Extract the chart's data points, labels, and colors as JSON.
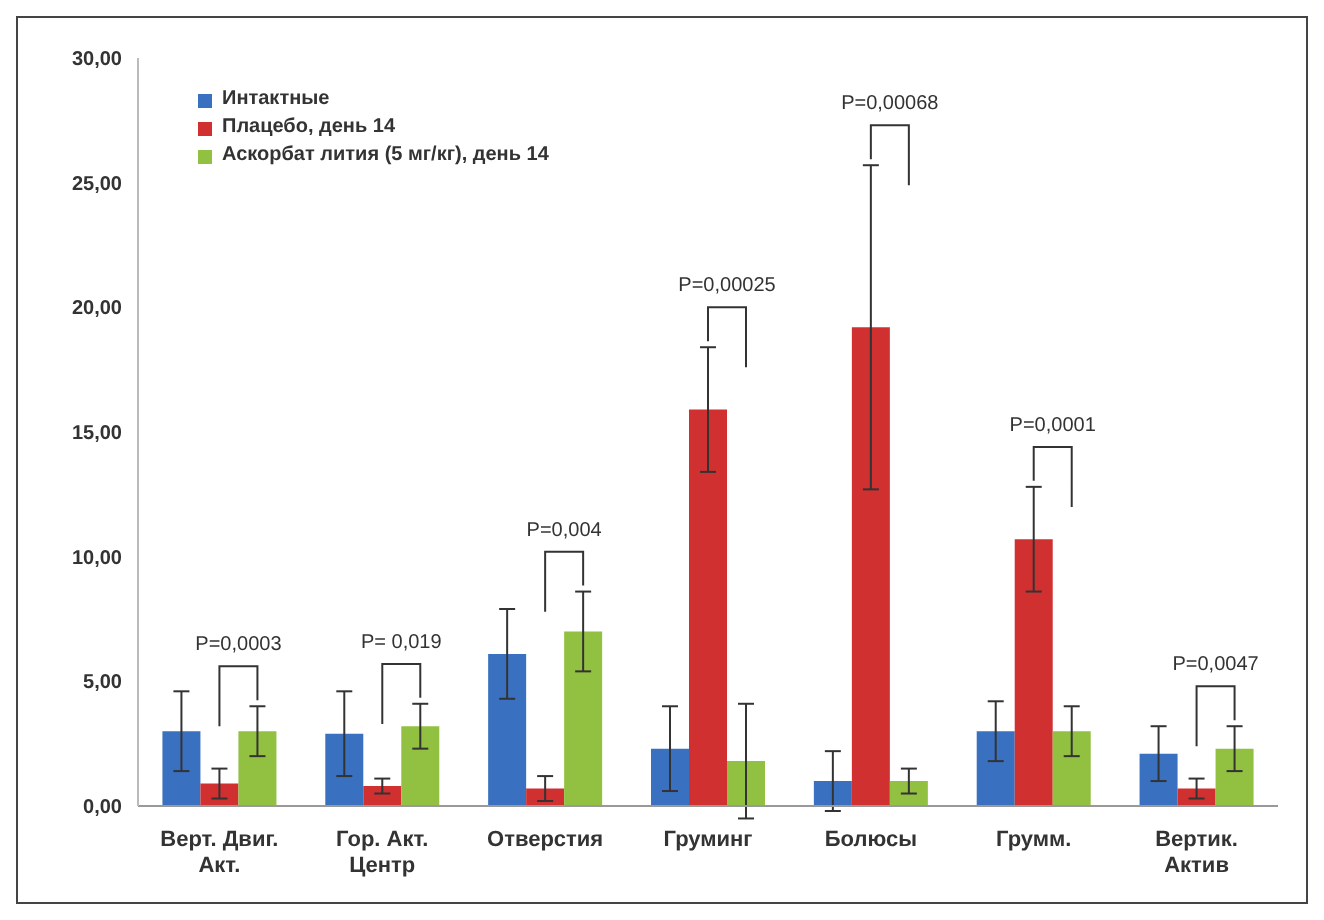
{
  "chart_data": {
    "type": "bar",
    "categories": [
      "Верт. Двиг. Акт.",
      "Гор. Акт. Центр",
      "Отверстия",
      "Груминг",
      "Болюсы",
      "Грумм.",
      "Вертик. Актив"
    ],
    "series": [
      {
        "name": "Интактные",
        "color": "#3a70c0",
        "values": [
          3.0,
          2.9,
          6.1,
          2.3,
          1.0,
          3.0,
          2.1
        ],
        "errors": [
          1.6,
          1.7,
          1.8,
          1.7,
          1.2,
          1.2,
          1.1
        ]
      },
      {
        "name": "Плацебо, день 14",
        "color": "#d03030",
        "values": [
          0.9,
          0.8,
          0.7,
          15.9,
          19.2,
          10.7,
          0.7
        ],
        "errors": [
          0.6,
          0.3,
          0.5,
          2.5,
          6.5,
          2.1,
          0.4
        ]
      },
      {
        "name": "Аскорбат лития (5 мг/кг), день 14",
        "color": "#92c040",
        "values": [
          3.0,
          3.2,
          7.0,
          1.8,
          1.0,
          3.0,
          2.3
        ],
        "errors": [
          1.0,
          0.9,
          1.6,
          2.3,
          0.5,
          1.0,
          0.9
        ]
      }
    ],
    "ylim": [
      0,
      30
    ],
    "yticks": [
      {
        "value": 0,
        "label": "0,00"
      },
      {
        "value": 5,
        "label": "5,00"
      },
      {
        "value": 10,
        "label": "10,00"
      },
      {
        "value": 15,
        "label": "15,00"
      },
      {
        "value": 20,
        "label": "20,00"
      },
      {
        "value": 25,
        "label": "25,00"
      },
      {
        "value": 30,
        "label": "30,00"
      }
    ],
    "grid": false,
    "legend": "top left",
    "annotations": [
      "P=0,0003",
      "P= 0,019",
      "P=0,004",
      "P=0,00025",
      "P=0,00068",
      "P=0,0001",
      "P=0,0047"
    ]
  }
}
